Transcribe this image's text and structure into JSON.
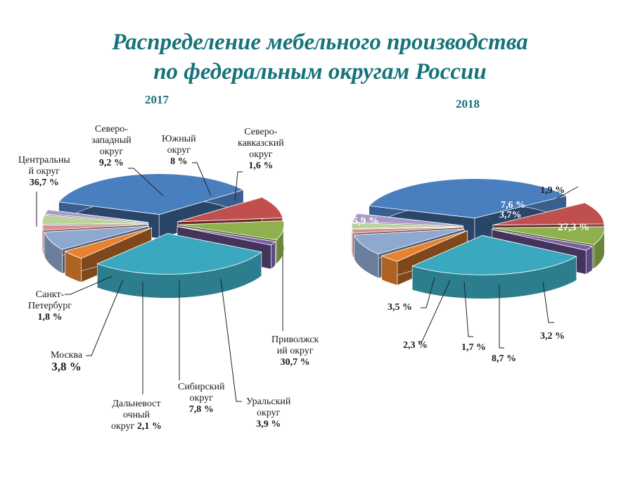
{
  "title": {
    "line1": "Распределение мебельного производства",
    "line2": "по федеральным округам России"
  },
  "chart_data": [
    {
      "type": "pie",
      "title": "2017",
      "categories": [
        "Центральный округ",
        "Северо-западный округ",
        "Южный округ",
        "Северо-кавказский округ",
        "Приволжский округ",
        "Уральский округ",
        "Сибирский округ",
        "Дальневосточный округ",
        "Москва",
        "Санкт-Петербург"
      ],
      "values": [
        36.7,
        9.2,
        8.0,
        1.6,
        30.7,
        3.9,
        7.8,
        2.1,
        3.8,
        1.8
      ],
      "labels": [
        "36,7 %",
        "9,2 %",
        "8 %",
        "1,6 %",
        "30,7 %",
        "3,9 %",
        "7,8 %",
        "2,1 %",
        "3,8 %",
        "1,8 %"
      ],
      "colors": [
        "#4a7fbf",
        "#c0504d",
        "#8fb04e",
        "#7b5ea8",
        "#3aa8bf",
        "#e8822f",
        "#8ea8cf",
        "#d99090",
        "#b9d39a",
        "#a99ac8"
      ],
      "exploded": true,
      "style": "3d"
    },
    {
      "type": "pie",
      "title": "2018",
      "categories": [
        "Центральный округ",
        "Северо-западный округ",
        "Южный округ",
        "Северо-кавказский округ",
        "Приволжский округ",
        "Уральский округ",
        "Сибирский округ",
        "Дальневосточный округ",
        "Москва",
        "Санкт-Петербург"
      ],
      "values": [
        35.9,
        9.2,
        7.6,
        1.9,
        27.3,
        3.2,
        8.7,
        1.7,
        2.3,
        3.5
      ],
      "labels": [
        "35,9 %",
        "",
        "7,6 %",
        "1,9 %",
        "27,3 %",
        "3,2 %",
        "8,7 %",
        "1,7 %",
        "2,3 %",
        "3,5 %"
      ],
      "extra_labels": [
        "3,7%"
      ],
      "colors": [
        "#4a7fbf",
        "#c0504d",
        "#8fb04e",
        "#7b5ea8",
        "#3aa8bf",
        "#e8822f",
        "#8ea8cf",
        "#d99090",
        "#b9d39a",
        "#a99ac8"
      ],
      "exploded": true,
      "style": "3d"
    }
  ],
  "labels2017": {
    "central": {
      "name1": "Центральны",
      "name2": "й округ",
      "value": "36,7 %"
    },
    "nw": {
      "name1": "Северо-",
      "name2": "западный",
      "name3": "округ",
      "value": "9,2 %"
    },
    "south": {
      "name1": "Южный",
      "name2": "округ",
      "value": "8 %"
    },
    "nc": {
      "name1": "Северо-",
      "name2": "кавказский",
      "name3": "округ",
      "value": "1,6 %"
    },
    "volga": {
      "name1": "Приволжск",
      "name2": "ий округ",
      "value": "30,7 %"
    },
    "ural": {
      "name1": "Уральский",
      "name2": "округ",
      "value": "3,9 %"
    },
    "siberia": {
      "name1": "Сибирский",
      "name2": "округ",
      "value": "7,8 %"
    },
    "fe": {
      "name1": "Дальневост",
      "name2": "очный",
      "name3": "округ",
      "value": "2,1 %"
    },
    "moscow": {
      "name1": "Москва",
      "value": "3,8 %"
    },
    "spb": {
      "name1": "Санкт-",
      "name2": "Петербург",
      "value": "1,8 %"
    }
  },
  "labels2018": {
    "central": "35,9 %",
    "south": "7,6 %",
    "nc": "1,9 %",
    "extra": "3,7%",
    "volga": "27,3 %",
    "ural": "3,2 %",
    "siberia": "8,7 %",
    "fe": "1,7 %",
    "moscow": "2,3 %",
    "spb": "3,5 %"
  },
  "years": {
    "y2017": "2017",
    "y2018": "2018"
  }
}
